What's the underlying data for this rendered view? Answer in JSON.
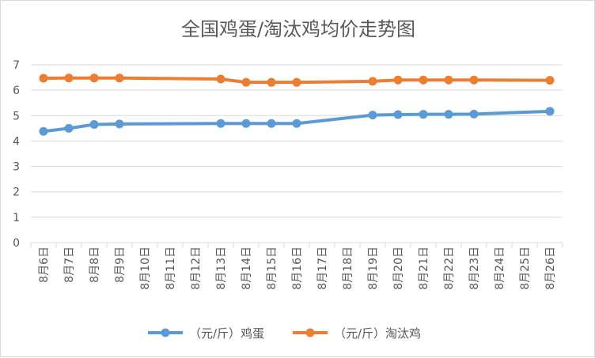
{
  "chart_data": {
    "type": "line",
    "title": "全国鸡蛋/淘汰鸡均价走势图",
    "xlabel": "",
    "ylabel": "",
    "ylim": [
      0,
      7
    ],
    "yticks": [
      0,
      1,
      2,
      3,
      4,
      5,
      6,
      7
    ],
    "grid": true,
    "legend_position": "bottom",
    "categories": [
      "8月6日",
      "8月7日",
      "8月8日",
      "8月9日",
      "8月10日",
      "8月11日",
      "8月12日",
      "8月13日",
      "8月14日",
      "8月15日",
      "8月16日",
      "8月17日",
      "8月18日",
      "8月19日",
      "8月20日",
      "8月21日",
      "8月22日",
      "8月23日",
      "8月24日",
      "8月25日",
      "8月26日"
    ],
    "series": [
      {
        "name": "（元/斤）鸡蛋",
        "color": "#5b9bd5",
        "values": [
          4.38,
          4.5,
          4.65,
          4.67,
          null,
          null,
          null,
          4.69,
          4.69,
          4.69,
          4.69,
          null,
          null,
          5.02,
          5.04,
          5.05,
          5.05,
          5.06,
          null,
          null,
          5.17
        ]
      },
      {
        "name": "（元/斤）淘汰鸡",
        "color": "#ed7d31",
        "values": [
          6.47,
          6.48,
          6.48,
          6.48,
          null,
          null,
          null,
          6.44,
          6.31,
          6.31,
          6.31,
          null,
          null,
          6.35,
          6.4,
          6.4,
          6.4,
          6.4,
          null,
          null,
          6.39
        ]
      }
    ]
  }
}
